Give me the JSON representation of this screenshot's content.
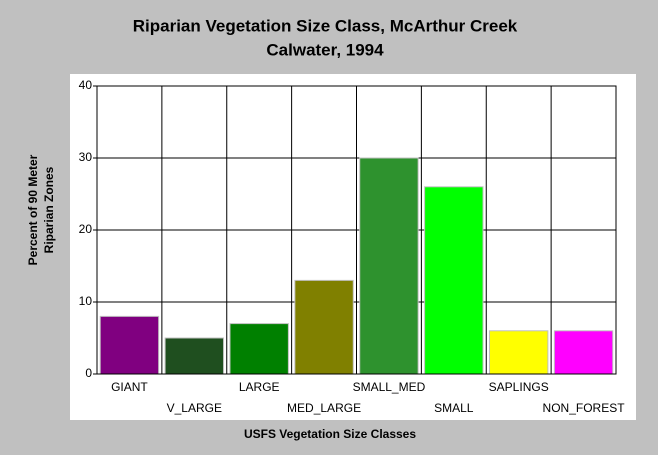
{
  "chart_data": {
    "type": "bar",
    "title": [
      "Riparian Vegetation Size Class, McArthur Creek",
      "Calwater, 1994"
    ],
    "ylabel": [
      "Percent of 90 Meter",
      "Riparian Zones"
    ],
    "xlabel": "USFS Vegetation Size Classes",
    "categories": [
      "GIANT",
      "V_LARGE",
      "LARGE",
      "MED_LARGE",
      "SMALL_MED",
      "SMALL",
      "SAPLINGS",
      "NON_FOREST"
    ],
    "values": [
      8,
      5,
      7,
      13,
      30,
      26,
      6,
      6
    ],
    "colors": [
      "#800080",
      "#1f4f1f",
      "#008000",
      "#808000",
      "#2e922e",
      "#00ff00",
      "#ffff00",
      "#ff00ff"
    ],
    "ylim": [
      0,
      40
    ],
    "yticks": [
      0,
      10,
      20,
      30,
      40
    ],
    "grid": true
  }
}
